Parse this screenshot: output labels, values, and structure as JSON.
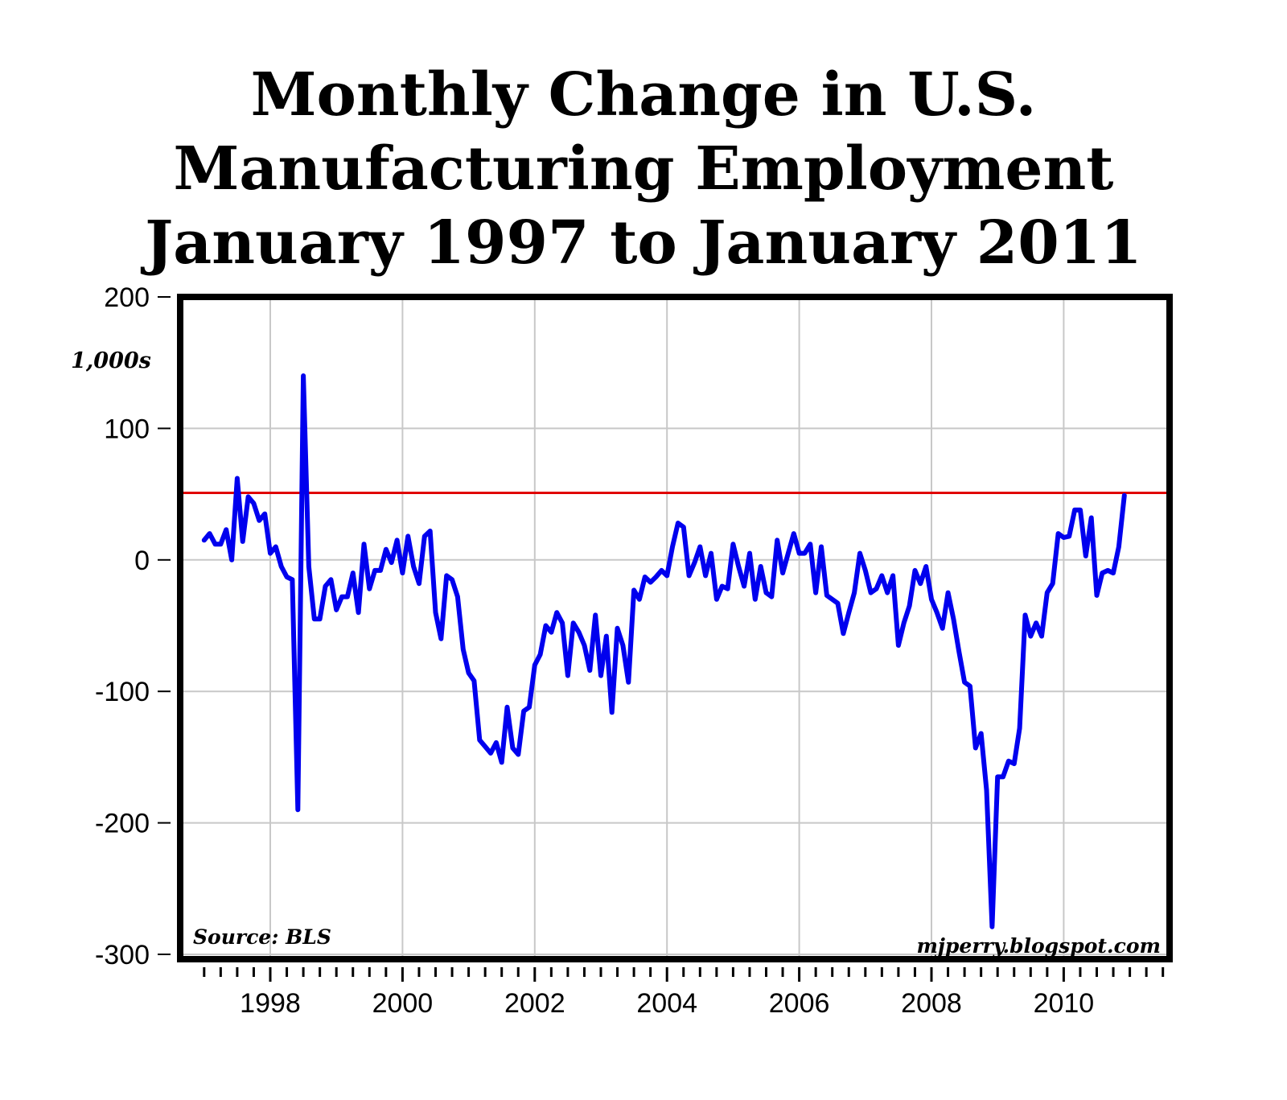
{
  "title_lines": [
    "Monthly Change in U.S.",
    "Manufacturing Employment",
    "January 1997 to January 2011"
  ],
  "unit_label": "1,000s",
  "source": "Source: BLS",
  "watermark": "mjperry.blogspot.com",
  "colors": {
    "series": "#0000ee",
    "reference_line": "#e00000",
    "grid": "#c8c8c8",
    "frame": "#000000"
  },
  "chart_data": {
    "type": "line",
    "title": "Monthly Change in U.S. Manufacturing Employment January 1997 to January 2011",
    "xlabel": "",
    "ylabel": "1,000s",
    "xlim": [
      1997.0,
      2011.5
    ],
    "ylim": [
      -300,
      200
    ],
    "yticks": [
      200,
      100,
      0,
      -100,
      -200,
      -300
    ],
    "ytick_labels": [
      "200",
      "100",
      "0",
      "-100",
      "-200",
      "-300"
    ],
    "xticks": [
      1998,
      2000,
      2002,
      2004,
      2006,
      2008,
      2010
    ],
    "xtick_labels": [
      "1998",
      "2000",
      "2002",
      "2004",
      "2006",
      "2008",
      "2010"
    ],
    "grid": true,
    "reference_line": {
      "y": 51,
      "color": "#e00000"
    },
    "series": [
      {
        "color": "#0000ee",
        "x_start": "1997-01",
        "frequency": "monthly",
        "values": [
          15,
          20,
          12,
          12,
          23,
          0,
          62,
          14,
          48,
          43,
          30,
          35,
          5,
          10,
          -5,
          -13,
          -15,
          -190,
          140,
          -5,
          -45,
          -45,
          -20,
          -15,
          -38,
          -28,
          -28,
          -10,
          -40,
          12,
          -22,
          -8,
          -8,
          8,
          -2,
          15,
          -10,
          18,
          -5,
          -18,
          18,
          22,
          -40,
          -60,
          -12,
          -15,
          -28,
          -68,
          -86,
          -92,
          -137,
          -142,
          -147,
          -139,
          -154,
          -112,
          -143,
          -148,
          -115,
          -112,
          -80,
          -72,
          -50,
          -55,
          -40,
          -48,
          -88,
          -48,
          -55,
          -65,
          -84,
          -42,
          -88,
          -58,
          -116,
          -52,
          -65,
          -93,
          -23,
          -30,
          -13,
          -17,
          -13,
          -8,
          -12,
          10,
          28,
          25,
          -12,
          -2,
          10,
          -12,
          5,
          -30,
          -20,
          -22,
          12,
          -5,
          -20,
          5,
          -30,
          -5,
          -25,
          -28,
          15,
          -10,
          5,
          20,
          5,
          5,
          12,
          -25,
          10,
          -27,
          -30,
          -33,
          -56,
          -40,
          -25,
          5,
          -8,
          -25,
          -22,
          -12,
          -25,
          -12,
          -65,
          -48,
          -35,
          -8,
          -18,
          -5,
          -30,
          -40,
          -52,
          -25,
          -45,
          -70,
          -93,
          -96,
          -143,
          -132,
          -175,
          -279,
          -165,
          -165,
          -153,
          -155,
          -128,
          -42,
          -58,
          -48,
          -58,
          -25,
          -18,
          20,
          17,
          18,
          38,
          38,
          3,
          32,
          -27,
          -10,
          -8,
          -10,
          10,
          49
        ]
      }
    ]
  }
}
